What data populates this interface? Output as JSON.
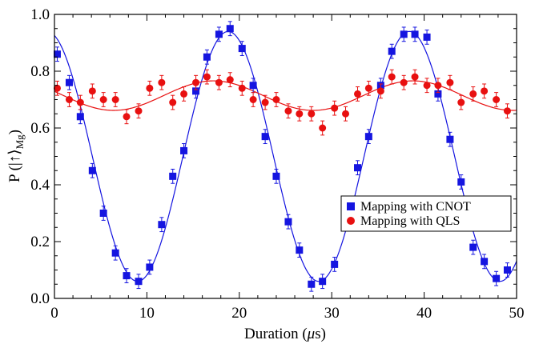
{
  "chart_data": {
    "type": "scatter",
    "xlabel": "Duration (μs)",
    "ylabel": "P (|↑⟩Mg)",
    "ylabel_main": "P (|↑⟩",
    "ylabel_sub": "Mg",
    "ylabel_tail": ")",
    "xlim": [
      0,
      50
    ],
    "ylim": [
      0.0,
      1.0
    ],
    "x_ticks": [
      0,
      10,
      20,
      30,
      40,
      50
    ],
    "y_ticks": [
      0.0,
      0.2,
      0.4,
      0.6,
      0.8,
      1.0
    ],
    "x_tick_labels": [
      "0",
      "10",
      "20",
      "30",
      "40",
      "50"
    ],
    "y_tick_labels": [
      "0.0",
      "0.2",
      "0.4",
      "0.6",
      "0.8",
      "1.0"
    ],
    "grid": false,
    "legend_position": "right-center",
    "series": [
      {
        "name": "Mapping with CNOT",
        "marker": "square",
        "color": "#1515e0",
        "x": [
          0.3,
          1.6,
          2.8,
          4.1,
          5.3,
          6.6,
          7.8,
          9.1,
          10.3,
          11.6,
          12.8,
          14.0,
          15.3,
          16.5,
          17.8,
          19.0,
          20.3,
          21.5,
          22.8,
          24.0,
          25.3,
          26.5,
          27.8,
          29.0,
          30.3,
          31.5,
          32.8,
          34.0,
          35.3,
          36.5,
          37.8,
          39.0,
          40.3,
          41.5,
          42.8,
          44.0,
          45.3,
          46.5,
          47.8,
          49.0
        ],
        "values": [
          0.86,
          0.76,
          0.64,
          0.45,
          0.3,
          0.16,
          0.08,
          0.06,
          0.11,
          0.26,
          0.43,
          0.52,
          0.73,
          0.85,
          0.93,
          0.95,
          0.88,
          0.75,
          0.57,
          0.43,
          0.27,
          0.17,
          0.05,
          0.06,
          0.12,
          0.27,
          0.46,
          0.57,
          0.75,
          0.87,
          0.93,
          0.93,
          0.92,
          0.72,
          0.56,
          0.41,
          0.18,
          0.13,
          0.07,
          0.1
        ],
        "err": 0.025,
        "fit": {
          "offset": 0.5,
          "amplitude": 0.44,
          "period_us": 19.6,
          "phase_shift_us": 18.8
        }
      },
      {
        "name": "Mapping with QLS",
        "marker": "circle",
        "color": "#e81010",
        "x": [
          0.3,
          1.6,
          2.8,
          4.1,
          5.3,
          6.6,
          7.8,
          9.1,
          10.3,
          11.6,
          12.8,
          14.0,
          15.3,
          16.5,
          17.8,
          19.0,
          20.3,
          21.5,
          22.8,
          24.0,
          25.3,
          26.5,
          27.8,
          29.0,
          30.3,
          31.5,
          32.8,
          34.0,
          35.3,
          36.5,
          37.8,
          39.0,
          40.3,
          41.5,
          42.8,
          44.0,
          45.3,
          46.5,
          47.8,
          49.0
        ],
        "values": [
          0.74,
          0.7,
          0.69,
          0.73,
          0.7,
          0.7,
          0.64,
          0.66,
          0.74,
          0.76,
          0.69,
          0.72,
          0.76,
          0.78,
          0.76,
          0.77,
          0.74,
          0.7,
          0.69,
          0.7,
          0.66,
          0.65,
          0.65,
          0.6,
          0.67,
          0.65,
          0.72,
          0.74,
          0.73,
          0.78,
          0.76,
          0.78,
          0.75,
          0.75,
          0.76,
          0.69,
          0.72,
          0.73,
          0.7,
          0.66
        ],
        "err": 0.025,
        "fit": {
          "offset": 0.714,
          "amplitude": 0.052,
          "period_us": 21.6,
          "phase_shift_us": 17.2
        }
      }
    ]
  }
}
